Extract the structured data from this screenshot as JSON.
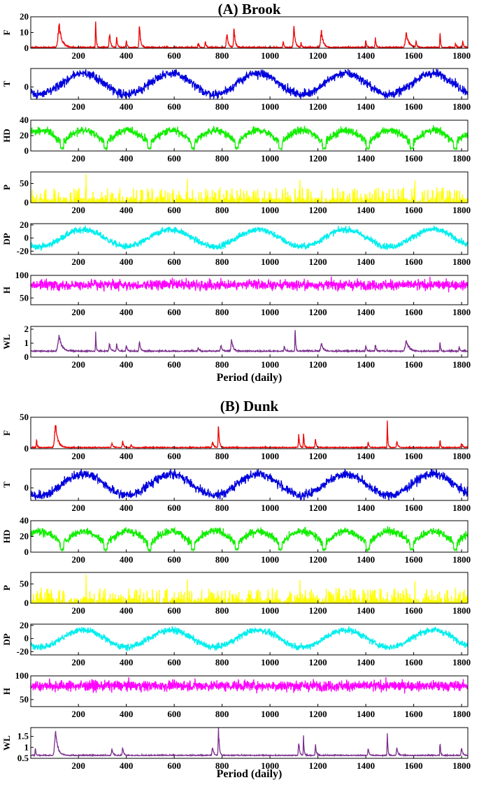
{
  "figure": {
    "x_axis_label": "Period (daily)"
  },
  "chart_data": [
    {
      "title": "(A) Brook",
      "type": "line",
      "xlabel": "Period (daily)",
      "x_range": [
        1,
        1826
      ],
      "x_ticks": [
        200,
        400,
        600,
        800,
        1000,
        1200,
        1400,
        1600,
        1800
      ],
      "grid": false,
      "panels": [
        {
          "name": "F",
          "color": "#ee0000",
          "ylim": [
            0,
            20
          ],
          "y_ticks": [
            0,
            10,
            20
          ],
          "pattern": "spikes",
          "base": 0.3,
          "noise": 0.6,
          "spikes": [
            [
              120,
              14,
              10
            ],
            [
              272,
              20,
              2
            ],
            [
              330,
              9,
              4
            ],
            [
              360,
              7,
              3
            ],
            [
              400,
              5,
              3
            ],
            [
              455,
              14,
              4
            ],
            [
              700,
              3,
              3
            ],
            [
              730,
              4,
              3
            ],
            [
              820,
              9,
              5
            ],
            [
              850,
              13,
              4
            ],
            [
              1055,
              4,
              3
            ],
            [
              1100,
              13,
              5
            ],
            [
              1130,
              3,
              3
            ],
            [
              1215,
              10,
              7
            ],
            [
              1400,
              5,
              3
            ],
            [
              1440,
              6,
              3
            ],
            [
              1570,
              9,
              9
            ],
            [
              1610,
              4,
              3
            ],
            [
              1710,
              11,
              2
            ],
            [
              1775,
              3,
              3
            ],
            [
              1805,
              4,
              3
            ]
          ]
        },
        {
          "name": "T",
          "color": "#0000dd",
          "ylim": [
            -10,
            15
          ],
          "y_ticks": [
            0
          ],
          "pattern": "seasonal",
          "mean": 2.5,
          "amp": 8.5,
          "phase_peak": 220,
          "noise": 3.5
        },
        {
          "name": "HD",
          "color": "#11ee00",
          "ylim": [
            0,
            40
          ],
          "y_ticks": [
            0,
            20,
            40
          ],
          "pattern": "seasonal_abs",
          "mean": 13,
          "amp": 16,
          "phase_peak": 40,
          "noise": 5
        },
        {
          "name": "P",
          "color": "#ffff00",
          "ylim": [
            0,
            80
          ],
          "y_ticks": [
            0,
            50
          ],
          "pattern": "rain",
          "max": 40,
          "big": [
            [
              232,
              74
            ],
            [
              655,
              62
            ],
            [
              1125,
              60
            ],
            [
              1605,
              58
            ]
          ]
        },
        {
          "name": "DP",
          "color": "#00eeee",
          "ylim": [
            -25,
            22
          ],
          "y_ticks": [
            -20,
            0,
            20
          ],
          "pattern": "seasonal",
          "mean": 0,
          "amp": 13,
          "phase_peak": 220,
          "noise": 5
        },
        {
          "name": "H",
          "color": "#ff00ff",
          "ylim": [
            35,
            100
          ],
          "y_ticks": [
            50,
            100
          ],
          "pattern": "humidity",
          "mean": 79,
          "spread": 16
        },
        {
          "name": "WL",
          "color": "#7b2d8e",
          "ylim": [
            0,
            2.2
          ],
          "y_ticks": [
            0,
            1,
            2
          ],
          "pattern": "spikes",
          "base": 0.4,
          "noise": 0.08,
          "spikes": [
            [
              120,
              1.1,
              10
            ],
            [
              272,
              1.3,
              2
            ],
            [
              330,
              0.6,
              4
            ],
            [
              360,
              0.6,
              3
            ],
            [
              400,
              0.5,
              3
            ],
            [
              455,
              0.8,
              4
            ],
            [
              700,
              0.3,
              3
            ],
            [
              795,
              0.5,
              4
            ],
            [
              840,
              0.9,
              5
            ],
            [
              1060,
              0.4,
              3
            ],
            [
              1105,
              1.8,
              2
            ],
            [
              1215,
              0.6,
              6
            ],
            [
              1400,
              0.4,
              3
            ],
            [
              1440,
              0.5,
              3
            ],
            [
              1570,
              0.8,
              9
            ],
            [
              1710,
              0.8,
              2
            ],
            [
              1790,
              0.3,
              3
            ]
          ]
        }
      ]
    },
    {
      "title": "(B) Dunk",
      "type": "line",
      "xlabel": "Period (daily)",
      "x_range": [
        1,
        1826
      ],
      "x_ticks": [
        200,
        400,
        600,
        800,
        1000,
        1200,
        1400,
        1600,
        1800
      ],
      "grid": false,
      "panels": [
        {
          "name": "F",
          "color": "#ee0000",
          "ylim": [
            0,
            50
          ],
          "y_ticks": [
            0,
            50
          ],
          "pattern": "spikes",
          "base": 1.5,
          "noise": 1.2,
          "spikes": [
            [
              25,
              14,
              2
            ],
            [
              105,
              38,
              8
            ],
            [
              340,
              7,
              4
            ],
            [
              385,
              9,
              4
            ],
            [
              420,
              5,
              3
            ],
            [
              785,
              38,
              3
            ],
            [
              760,
              10,
              4
            ],
            [
              1120,
              22,
              3
            ],
            [
              1140,
              28,
              2
            ],
            [
              1190,
              14,
              3
            ],
            [
              1410,
              9,
              3
            ],
            [
              1490,
              42,
              2
            ],
            [
              1530,
              10,
              4
            ],
            [
              1710,
              14,
              2
            ],
            [
              1800,
              7,
              4
            ]
          ]
        },
        {
          "name": "T",
          "color": "#0000dd",
          "ylim": [
            -10,
            15
          ],
          "y_ticks": [
            0
          ],
          "pattern": "seasonal",
          "mean": 2.5,
          "amp": 8.5,
          "phase_peak": 220,
          "noise": 3.5
        },
        {
          "name": "HD",
          "color": "#11ee00",
          "ylim": [
            0,
            40
          ],
          "y_ticks": [
            0,
            20,
            40
          ],
          "pattern": "seasonal_abs",
          "mean": 13,
          "amp": 16,
          "phase_peak": 40,
          "noise": 5
        },
        {
          "name": "P",
          "color": "#ffff00",
          "ylim": [
            0,
            80
          ],
          "y_ticks": [
            0,
            50
          ],
          "pattern": "rain",
          "max": 40,
          "big": [
            [
              232,
              74
            ],
            [
              655,
              62
            ],
            [
              1125,
              60
            ],
            [
              1605,
              58
            ]
          ]
        },
        {
          "name": "DP",
          "color": "#00eeee",
          "ylim": [
            -25,
            22
          ],
          "y_ticks": [
            -20,
            0,
            20
          ],
          "pattern": "seasonal",
          "mean": 0,
          "amp": 13,
          "phase_peak": 220,
          "noise": 5
        },
        {
          "name": "H",
          "color": "#ff00ff",
          "ylim": [
            35,
            100
          ],
          "y_ticks": [
            50,
            100
          ],
          "pattern": "humidity",
          "mean": 79,
          "spread": 16
        },
        {
          "name": "WL",
          "color": "#7b2d8e",
          "ylim": [
            0.5,
            1.9
          ],
          "y_ticks": [
            0.5,
            1,
            1.5
          ],
          "pattern": "spikes",
          "base": 0.62,
          "noise": 0.04,
          "spikes": [
            [
              20,
              0.4,
              2
            ],
            [
              105,
              1.1,
              8
            ],
            [
              340,
              0.3,
              4
            ],
            [
              385,
              0.35,
              4
            ],
            [
              760,
              0.4,
              4
            ],
            [
              785,
              1.2,
              3
            ],
            [
              1120,
              0.7,
              3
            ],
            [
              1140,
              0.9,
              2
            ],
            [
              1190,
              0.5,
              3
            ],
            [
              1410,
              0.35,
              3
            ],
            [
              1490,
              1.2,
              2
            ],
            [
              1530,
              0.4,
              4
            ],
            [
              1710,
              0.65,
              2
            ],
            [
              1800,
              0.35,
              4
            ]
          ]
        }
      ]
    }
  ]
}
